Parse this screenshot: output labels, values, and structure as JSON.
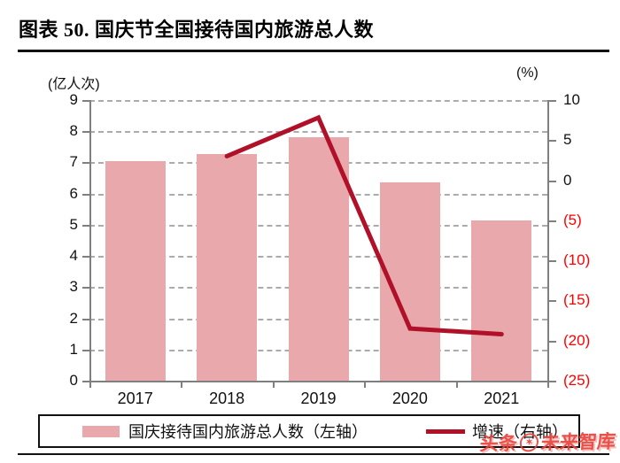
{
  "header": {
    "title": "图表 50. 国庆节全国接待国内旅游总人数"
  },
  "chart_data": {
    "type": "bar+line combo",
    "categories": [
      "2017",
      "2018",
      "2019",
      "2020",
      "2021"
    ],
    "series": [
      {
        "name": "国庆接待国内旅游总人数（左轴）",
        "type": "bar",
        "axis": "left",
        "values": [
          7.05,
          7.26,
          7.82,
          6.37,
          5.15
        ]
      },
      {
        "name": "增速（右轴）",
        "type": "line",
        "axis": "right",
        "values": [
          null,
          3.0,
          7.8,
          -18.5,
          -19.2
        ]
      }
    ],
    "left_axis": {
      "unit": "(亿人次)",
      "min": 0,
      "max": 9,
      "step": 1,
      "tick_labels": [
        "0",
        "1",
        "2",
        "3",
        "4",
        "5",
        "6",
        "7",
        "8",
        "9"
      ]
    },
    "right_axis": {
      "unit": "(%)",
      "min": -25,
      "max": 10,
      "step": 5,
      "ticks": [
        10,
        5,
        0,
        -5,
        -10,
        -15,
        -20,
        -25
      ],
      "tick_labels": [
        "10",
        "5",
        "0",
        "(5)",
        "(10)",
        "(15)",
        "(20)",
        "(25)"
      ],
      "negative_style": "red parentheses"
    },
    "grid": "horizontal dashed",
    "legend_position": "bottom boxed"
  },
  "legend": {
    "bar_label": "国庆接待国内旅游总人数（左轴）",
    "line_label": "增速（右轴）"
  },
  "watermark": {
    "prefix": "头条",
    "handle": "未来智库",
    "avatar_glyph": "✶"
  },
  "colors": {
    "bar": "#E9A8AC",
    "line": "#B01128",
    "negative_tick": "#FF0000",
    "positive_tick": "#111111",
    "axis": "#7F7F7F",
    "grid": "#ABABAB"
  }
}
